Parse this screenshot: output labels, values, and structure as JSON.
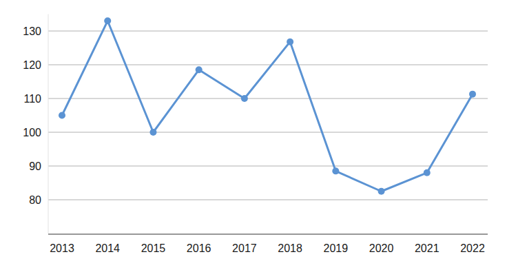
{
  "chart_data": {
    "type": "line",
    "categories": [
      "2013",
      "2014",
      "2015",
      "2016",
      "2017",
      "2018",
      "2019",
      "2020",
      "2021",
      "2022"
    ],
    "values": [
      105,
      133,
      100,
      118.5,
      110,
      126.8,
      88.5,
      82.5,
      88,
      111.3
    ],
    "color": "#5b93d3",
    "marker": "circle",
    "ylim": [
      70,
      135
    ],
    "yticks": [
      80,
      90,
      100,
      110,
      120,
      130
    ],
    "grid": true
  }
}
